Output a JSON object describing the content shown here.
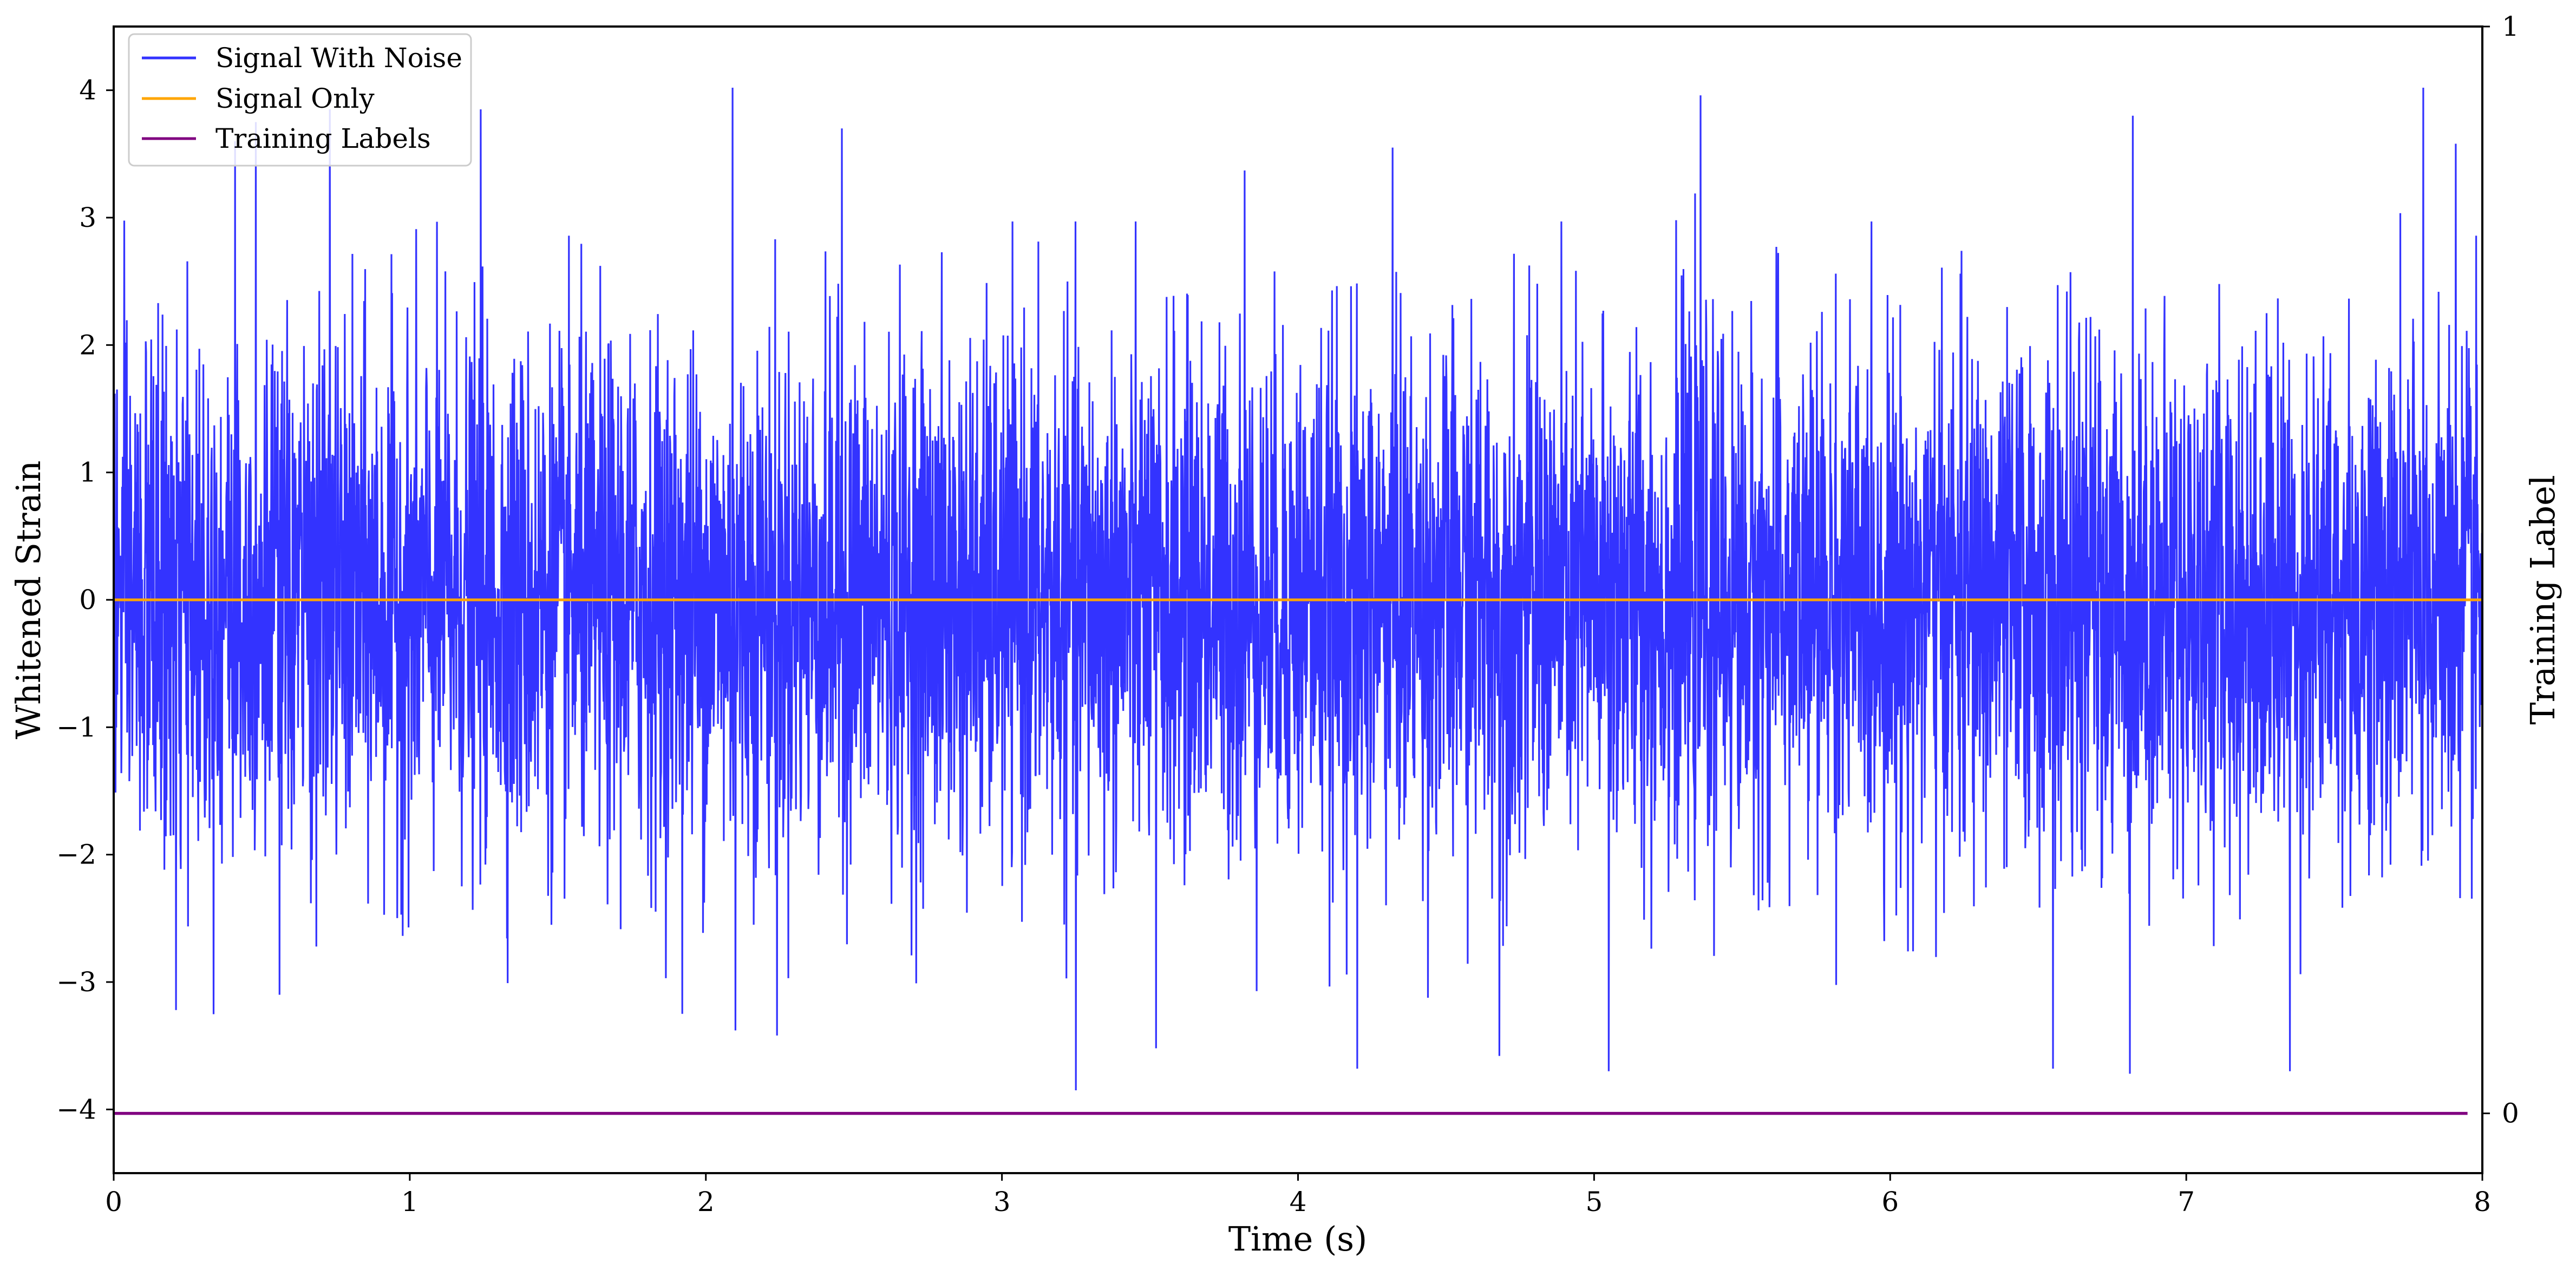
{
  "chart_data": {
    "type": "line",
    "xlabel": "Time (s)",
    "ylabel": "Whitened Strain",
    "ylabel_right": "Training Label",
    "xlim": [
      0,
      8
    ],
    "ylim": [
      -4.5,
      4.5
    ],
    "ylim_right": [
      -0.055,
      1.0
    ],
    "x_ticks": [
      0,
      1,
      2,
      3,
      4,
      5,
      6,
      7,
      8
    ],
    "y_ticks": [
      -4,
      -3,
      -2,
      -1,
      0,
      1,
      2,
      3,
      4
    ],
    "y_ticks_right": [
      0,
      1
    ],
    "legend": {
      "placement": "upper-left"
    },
    "grid": false,
    "series": [
      {
        "name": "Signal With Noise",
        "color": "#3333ff",
        "axis": "left",
        "description_values": {
          "x_range": [
            0,
            8
          ],
          "approx_std": 1.0,
          "min": -3.85,
          "max": 4.02
        },
        "peaks": [
          {
            "x": 0.41,
            "y": 3.6
          },
          {
            "x": 0.48,
            "y": 3.75
          },
          {
            "x": 0.73,
            "y": 3.85
          },
          {
            "x": 1.24,
            "y": 3.85
          },
          {
            "x": 2.09,
            "y": 4.02
          },
          {
            "x": 2.46,
            "y": 3.7
          },
          {
            "x": 3.82,
            "y": 3.37
          },
          {
            "x": 4.32,
            "y": 3.55
          },
          {
            "x": 5.36,
            "y": 3.96
          },
          {
            "x": 6.82,
            "y": 3.8
          },
          {
            "x": 7.8,
            "y": 4.02
          },
          {
            "x": 7.91,
            "y": 3.58
          }
        ],
        "troughs": [
          {
            "x": 0.21,
            "y": -3.22
          },
          {
            "x": 0.56,
            "y": -3.1
          },
          {
            "x": 1.92,
            "y": -3.25
          },
          {
            "x": 2.1,
            "y": -3.38
          },
          {
            "x": 2.24,
            "y": -3.42
          },
          {
            "x": 3.25,
            "y": -3.85
          },
          {
            "x": 3.52,
            "y": -3.52
          },
          {
            "x": 4.2,
            "y": -3.68
          },
          {
            "x": 4.68,
            "y": -3.58
          },
          {
            "x": 5.05,
            "y": -3.7
          },
          {
            "x": 6.55,
            "y": -3.68
          },
          {
            "x": 6.81,
            "y": -3.72
          },
          {
            "x": 7.35,
            "y": -3.7
          }
        ]
      },
      {
        "name": "Signal Only",
        "color": "#ffa500",
        "axis": "left",
        "x": [
          0,
          8
        ],
        "y": [
          0,
          0
        ]
      },
      {
        "name": "Training Labels",
        "color": "#800080",
        "axis": "right",
        "x": [
          0,
          7.95
        ],
        "y": [
          0,
          0
        ]
      }
    ]
  }
}
